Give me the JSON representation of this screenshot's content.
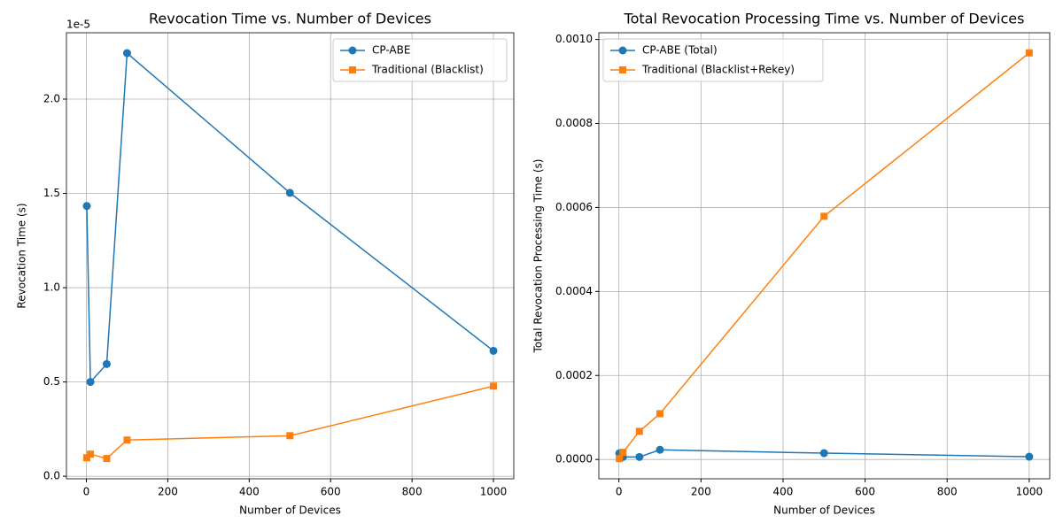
{
  "chart_data": [
    {
      "type": "line",
      "title": "Revocation Time vs. Number of Devices",
      "x_label": "Number of Devices",
      "y_label": "Revocation Time (s)",
      "y_offset_label": "1e-5",
      "grid": true,
      "legend": "upper right",
      "xlim": [
        -48.95,
        1049.95
      ],
      "xticks": [
        0,
        200,
        400,
        600,
        800,
        1000
      ],
      "ylim": [
        -0.0135,
        2.352
      ],
      "yticks": [
        {
          "value": 0,
          "label": "0.0"
        },
        {
          "value": 0.5,
          "label": "0.5"
        },
        {
          "value": 1,
          "label": "1.0"
        },
        {
          "value": 1.5,
          "label": "1.5"
        },
        {
          "value": 2,
          "label": "2.0"
        }
      ],
      "x": [
        1,
        10,
        50,
        100,
        500,
        1000
      ],
      "series": [
        {
          "name": "CP-ABE",
          "color": "#1f77b4",
          "marker": "circle",
          "values": [
            1.433,
            0.5,
            0.595,
            2.244,
            1.503,
            0.665
          ]
        },
        {
          "name": "Traditional (Blacklist)",
          "color": "#ff7f0e",
          "marker": "square",
          "values": [
            0.098,
            0.117,
            0.094,
            0.192,
            0.215,
            0.478
          ]
        }
      ]
    },
    {
      "type": "line",
      "title": "Total Revocation Processing Time vs. Number of Devices",
      "x_label": "Number of Devices",
      "y_label": "Total Revocation Processing Time (s)",
      "grid": true,
      "legend": "upper left",
      "xlim": [
        -48.95,
        1049.95
      ],
      "xticks": [
        0,
        200,
        400,
        600,
        800,
        1000
      ],
      "ylim": [
        -4.6e-05,
        0.001016
      ],
      "yticks": [
        {
          "value": 0,
          "label": "0.0000"
        },
        {
          "value": 0.0002,
          "label": "0.0002"
        },
        {
          "value": 0.0004,
          "label": "0.0004"
        },
        {
          "value": 0.0006,
          "label": "0.0006"
        },
        {
          "value": 0.0008,
          "label": "0.0008"
        },
        {
          "value": 0.001,
          "label": "0.0010"
        }
      ],
      "x": [
        1,
        10,
        50,
        100,
        500,
        1000
      ],
      "series": [
        {
          "name": "CP-ABE (Total)",
          "color": "#1f77b4",
          "marker": "circle",
          "values": [
            1.47e-05,
            6e-06,
            6e-06,
            2.3e-05,
            1.5e-05,
            6.6e-06
          ]
        },
        {
          "name": "Traditional (Blacklist+Rekey)",
          "color": "#ff7f0e",
          "marker": "square",
          "values": [
            2e-06,
            1.7e-05,
            6.7e-05,
            0.000109,
            0.000579,
            0.000968
          ]
        }
      ]
    }
  ]
}
